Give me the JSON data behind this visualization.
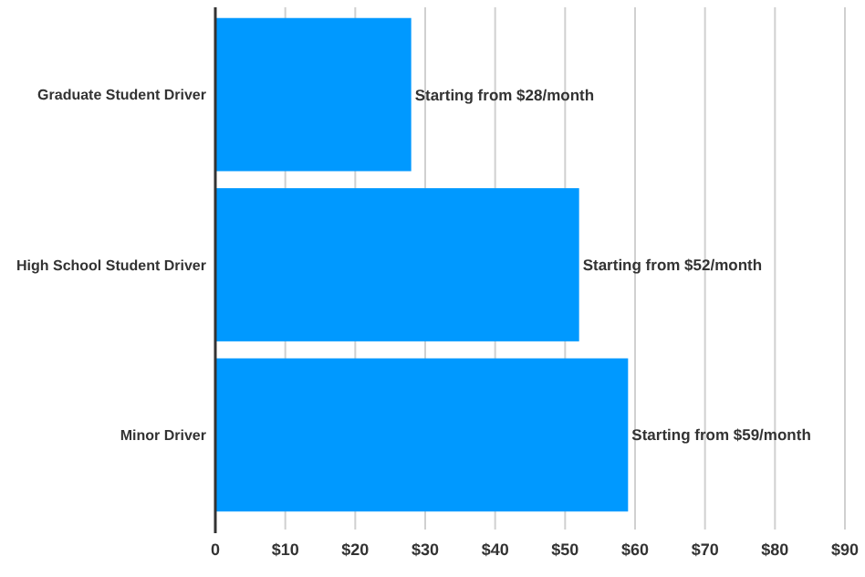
{
  "chart_data": {
    "type": "bar",
    "orientation": "horizontal",
    "categories": [
      "Graduate Student Driver",
      "High School Student Driver",
      "Minor Driver"
    ],
    "values": [
      28,
      52,
      59
    ],
    "value_labels": [
      "Starting from $28/month",
      "Starting from $52/month",
      "Starting from $59/month"
    ],
    "color": "#0099ff",
    "xlim": [
      0,
      90
    ],
    "xticks": [
      0,
      {
        "value": 10,
        "label": "$10"
      },
      {
        "value": 20,
        "label": "$20"
      },
      {
        "value": 30,
        "label": "$30"
      },
      {
        "value": 40,
        "label": "$40"
      },
      {
        "value": 50,
        "label": "$50"
      },
      {
        "value": 60,
        "label": "$60"
      },
      {
        "value": 70,
        "label": "$70"
      },
      {
        "value": 80,
        "label": "$80"
      },
      {
        "value": 90,
        "label": "$90"
      }
    ],
    "grid": "x"
  }
}
